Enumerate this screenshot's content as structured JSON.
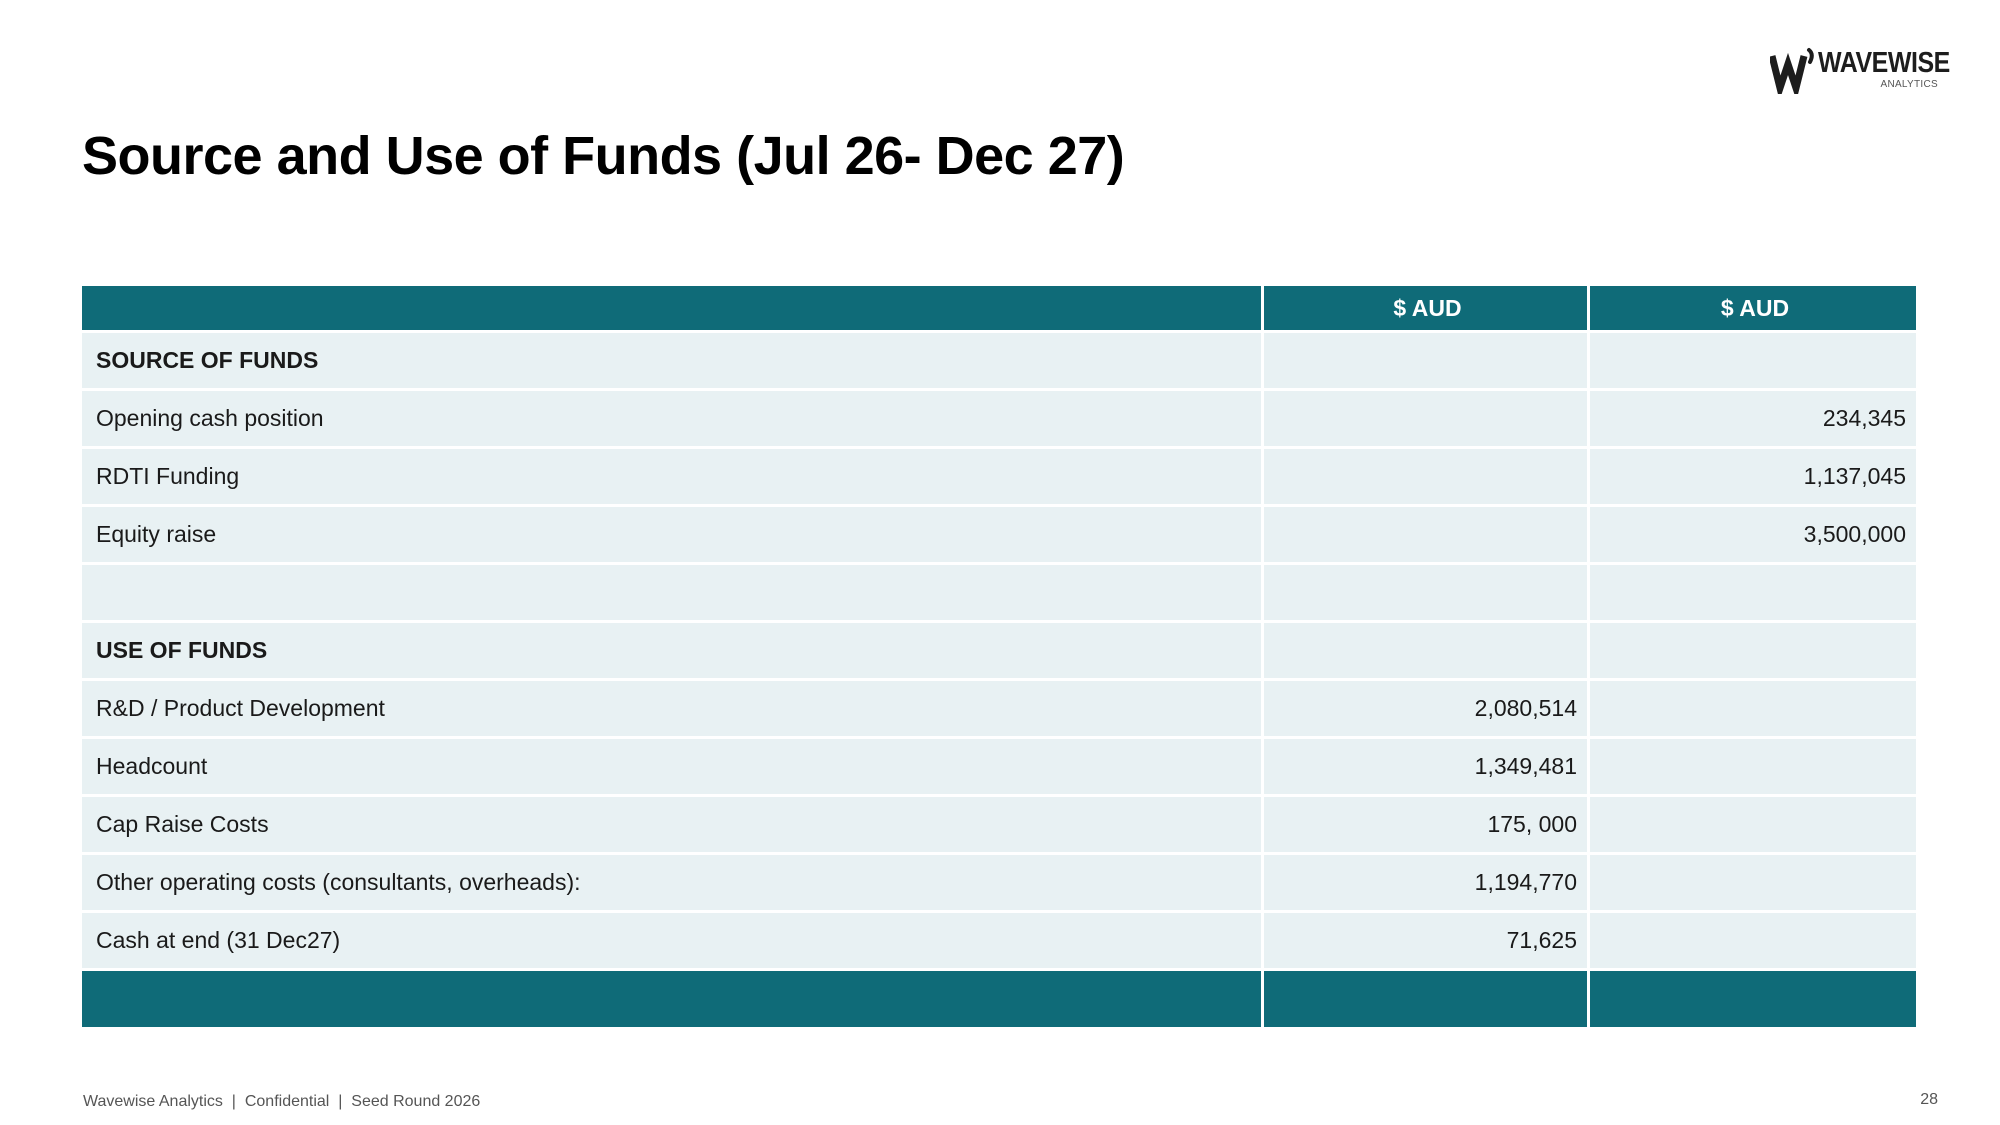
{
  "logo": {
    "name": "WAVEWISE",
    "subtitle": "ANALYTICS",
    "icon": "wave-logo-icon",
    "brand_color": "#1d1d1d"
  },
  "page": {
    "title": "Source and Use of Funds (Jul 26- Dec 27)"
  },
  "table": {
    "header": [
      "",
      "$ AUD",
      "$ AUD"
    ],
    "header_color": "#0f6b78",
    "row_color": "#e8f1f3",
    "rows": [
      {
        "label": "SOURCE OF FUNDS",
        "col1": "",
        "col2": ""
      },
      {
        "label": "Opening cash position",
        "col1": "",
        "col2": "234,345"
      },
      {
        "label": "RDTI Funding",
        "col1": "",
        "col2": "1,137,045"
      },
      {
        "label": "Equity raise",
        "col1": "",
        "col2": "3,500,000"
      },
      {
        "label": "",
        "col1": "",
        "col2": ""
      },
      {
        "label": "USE OF FUNDS",
        "col1": "",
        "col2": ""
      },
      {
        "label": "R&D / Product Development",
        "col1": "2,080,514",
        "col2": ""
      },
      {
        "label": "Headcount",
        "col1": "1,349,481",
        "col2": ""
      },
      {
        "label": "Cap Raise Costs",
        "col1": "175, 000",
        "col2": ""
      },
      {
        "label": "Other operating costs (consultants, overheads):",
        "col1": "1,194,770",
        "col2": ""
      },
      {
        "label": "Cash at end (31 Dec27)",
        "col1": "71,625",
        "col2": ""
      }
    ]
  },
  "footer": {
    "text": "Wavewise Analytics  |  Confidential  |  Seed Round 2026",
    "page_number": "28"
  }
}
